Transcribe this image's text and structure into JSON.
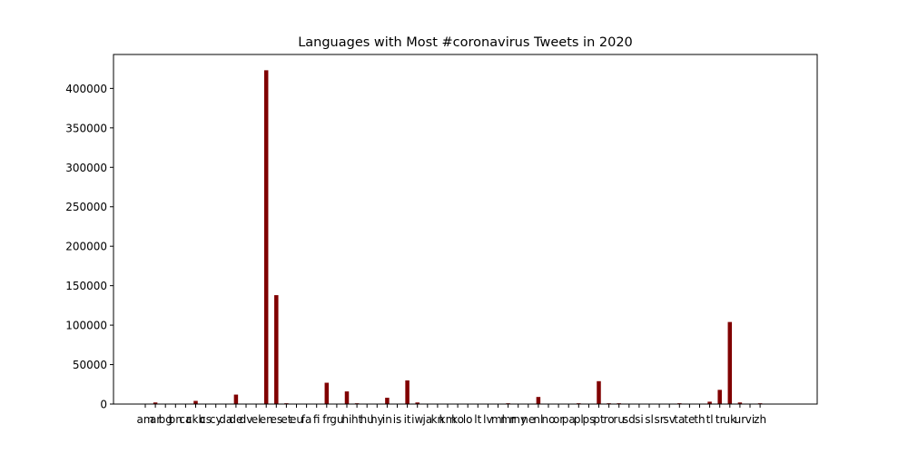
{
  "chart_data": {
    "type": "bar",
    "title": "Languages with Most #coronavirus Tweets in 2020",
    "xlabel": "",
    "ylabel": "",
    "ylim": [
      0,
      443000
    ],
    "yticks": [
      0,
      50000,
      100000,
      150000,
      200000,
      250000,
      300000,
      350000,
      400000
    ],
    "grid": false,
    "legend": "none",
    "bar_color": "#800000",
    "categories": [
      "am",
      "ar",
      "bg",
      "bn",
      "ca",
      "ckb",
      "cs",
      "cy",
      "da",
      "de",
      "dv",
      "el",
      "en",
      "es",
      "et",
      "eu",
      "fa",
      "fi",
      "fr",
      "gu",
      "hi",
      "ht",
      "hu",
      "hy",
      "in",
      "is",
      "it",
      "iw",
      "ja",
      "kn",
      "km",
      "ko",
      "lo",
      "lt",
      "lv",
      "ml",
      "mr",
      "my",
      "ne",
      "nl",
      "no",
      "or",
      "pa",
      "pl",
      "ps",
      "pt",
      "ro",
      "ru",
      "sd",
      "si",
      "sl",
      "sr",
      "sv",
      "ta",
      "te",
      "th",
      "tl",
      "tr",
      "uk",
      "ur",
      "vi",
      "zh"
    ],
    "values": [
      0,
      2000,
      0,
      0,
      0,
      4000,
      0,
      0,
      0,
      12000,
      0,
      0,
      423000,
      138000,
      1000,
      0,
      0,
      0,
      27000,
      0,
      16000,
      1000,
      0,
      0,
      8000,
      0,
      30000,
      2000,
      0,
      0,
      0,
      0,
      0,
      0,
      0,
      0,
      1000,
      0,
      0,
      9000,
      0,
      0,
      0,
      1000,
      0,
      29000,
      1000,
      1000,
      0,
      0,
      0,
      0,
      0,
      1000,
      0,
      0,
      3000,
      18000,
      104000,
      2000,
      0,
      1000
    ]
  }
}
